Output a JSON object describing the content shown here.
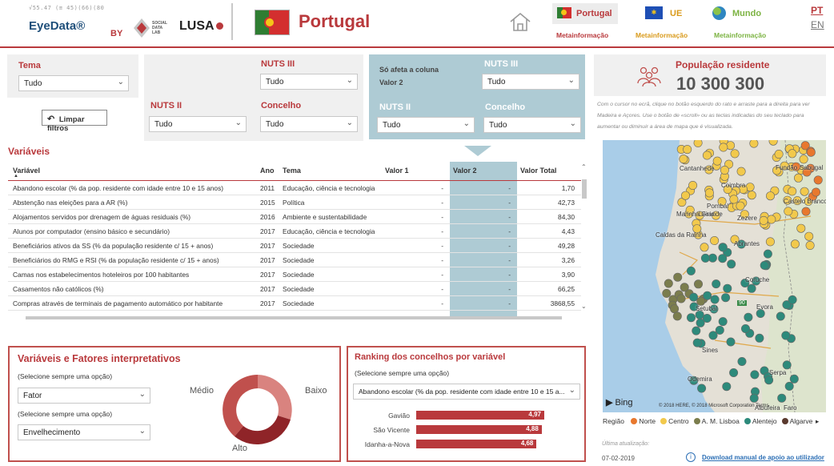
{
  "header": {
    "logo_text": "EyeData®",
    "logo_numbers": "√55.47 (≅ 45)(66)(80",
    "by": "BY",
    "partner1": "SOCIAL DATA LAB",
    "partner2": "LUSA",
    "country_title": "Portugal",
    "scopes": [
      {
        "label": "Portugal",
        "meta": "Metainformação"
      },
      {
        "label": "UE",
        "meta": "Metainformação"
      },
      {
        "label": "Mundo",
        "meta": "Metainformação"
      }
    ],
    "lang_pt": "PT",
    "lang_en": "EN"
  },
  "filters": {
    "tema_label": "Tema",
    "tema_value": "Tudo",
    "clear_label": "Limpar filtros",
    "nuts2_label": "NUTS II",
    "nuts2_value": "Tudo",
    "nuts3_label": "NUTS III",
    "nuts3_value": "Tudo",
    "concelho_label": "Concelho",
    "concelho_value": "Tudo",
    "v2_note_line1": "Só afeta a coluna",
    "v2_note_line2": "Valor 2",
    "v2_nuts3_label": "NUTS III",
    "v2_nuts3_value": "Tudo",
    "v2_nuts2_label": "NUTS II",
    "v2_nuts2_value": "Tudo",
    "v2_concelho_label": "Concelho",
    "v2_concelho_value": "Tudo"
  },
  "population": {
    "label": "População residente",
    "value": "10 300 300",
    "hint": "Com o cursor no ecrã, clique no botão esquerdo do rato e arraste para a direita para ver Madeira e Açores. Use o botão de «scroll» ou as teclas indicadas do seu teclado para aumentar ou diminuir a área de mapa que é visualizada."
  },
  "variables": {
    "section_title": "Variáveis",
    "columns": [
      "Variável",
      "Ano",
      "Tema",
      "Valor 1",
      "Valor 2",
      "Valor Total"
    ],
    "rows": [
      {
        "var": "Abandono escolar (% da pop. residente com idade entre 10 e 15 anos)",
        "ano": "2011",
        "tema": "Educação, ciência e tecnologia",
        "v1": "-",
        "v2": "-",
        "vt": "1,70"
      },
      {
        "var": "Abstenção nas eleições para a AR (%)",
        "ano": "2015",
        "tema": "Política",
        "v1": "-",
        "v2": "-",
        "vt": "42,73"
      },
      {
        "var": "Alojamentos servidos por drenagem de águas residuais (%)",
        "ano": "2016",
        "tema": "Ambiente e sustentabilidade",
        "v1": "-",
        "v2": "-",
        "vt": "84,30"
      },
      {
        "var": "Alunos por computador (ensino básico e secundário)",
        "ano": "2017",
        "tema": "Educação, ciência e tecnologia",
        "v1": "-",
        "v2": "-",
        "vt": "4,43"
      },
      {
        "var": "Beneficiários ativos da SS (% da população residente c/ 15 + anos)",
        "ano": "2017",
        "tema": "Sociedade",
        "v1": "-",
        "v2": "-",
        "vt": "49,28"
      },
      {
        "var": "Beneficiários do RMG e RSI (% da população residente c/ 15 + anos)",
        "ano": "2017",
        "tema": "Sociedade",
        "v1": "-",
        "v2": "-",
        "vt": "3,26"
      },
      {
        "var": "Camas nos estabelecimentos hoteleiros por 100 habitantes",
        "ano": "2017",
        "tema": "Sociedade",
        "v1": "-",
        "v2": "-",
        "vt": "3,90"
      },
      {
        "var": "Casamentos não católicos (%)",
        "ano": "2017",
        "tema": "Sociedade",
        "v1": "-",
        "v2": "-",
        "vt": "66,25"
      },
      {
        "var": "Compras através de terminais de pagamento automático por habitante",
        "ano": "2017",
        "tema": "Sociedade",
        "v1": "-",
        "v2": "-",
        "vt": "3868,55"
      }
    ]
  },
  "factors": {
    "title": "Variáveis e Fatores interpretativos",
    "select_hint1": "(Selecione sempre uma opção)",
    "select1_value": "Fator",
    "select_hint2": "(Selecione sempre uma opção)",
    "select2_value": "Envelhecimento",
    "donut_labels": [
      "Médio",
      "Baixo",
      "Alto"
    ]
  },
  "ranking": {
    "title": "Ranking dos concelhos por variável",
    "select_hint": "(Selecione sempre uma opção)",
    "select_value": "Abandono escolar (% da pop. residente com idade entre 10 e 15 a...",
    "items": [
      {
        "name": "Gavião",
        "value": "4,97",
        "frac": 1.0
      },
      {
        "name": "São Vicente",
        "value": "4,88",
        "frac": 0.98
      },
      {
        "name": "Idanha-a-Nova",
        "value": "4,68",
        "frac": 0.94
      }
    ]
  },
  "map": {
    "places": [
      "Cantanhede",
      "Coimbra",
      "Pombal",
      "Leiria",
      "Marinha Grande",
      "Caldas da Rainha",
      "Castelo Branco",
      "Fundão",
      "Sabugal",
      "Zezere",
      "Abrantes",
      "Coruche",
      "Setubal",
      "Sines",
      "Odemira",
      "Evora",
      "Serpa",
      "Albufeira",
      "Faro"
    ],
    "bing": "Bing",
    "copyright": "© 2018 HERE, © 2018 Microsoft Corporation Terms",
    "road_90": "90",
    "legend_title": "Região",
    "legend": [
      {
        "label": "Norte",
        "color": "#e8782e"
      },
      {
        "label": "Centro",
        "color": "#f2c94c"
      },
      {
        "label": "A. M. Lisboa",
        "color": "#7b7d4d"
      },
      {
        "label": "Alentejo",
        "color": "#2d8a7b"
      },
      {
        "label": "Algarve",
        "color": "#5a3a2e"
      }
    ]
  },
  "footer": {
    "updated_label": "Última atualização:",
    "updated_date": "07-02-2019",
    "manual_link": "Download manual de apoio ao utilizador"
  },
  "colors": {
    "accent": "#b9393c",
    "panel": "#aecbd4"
  }
}
